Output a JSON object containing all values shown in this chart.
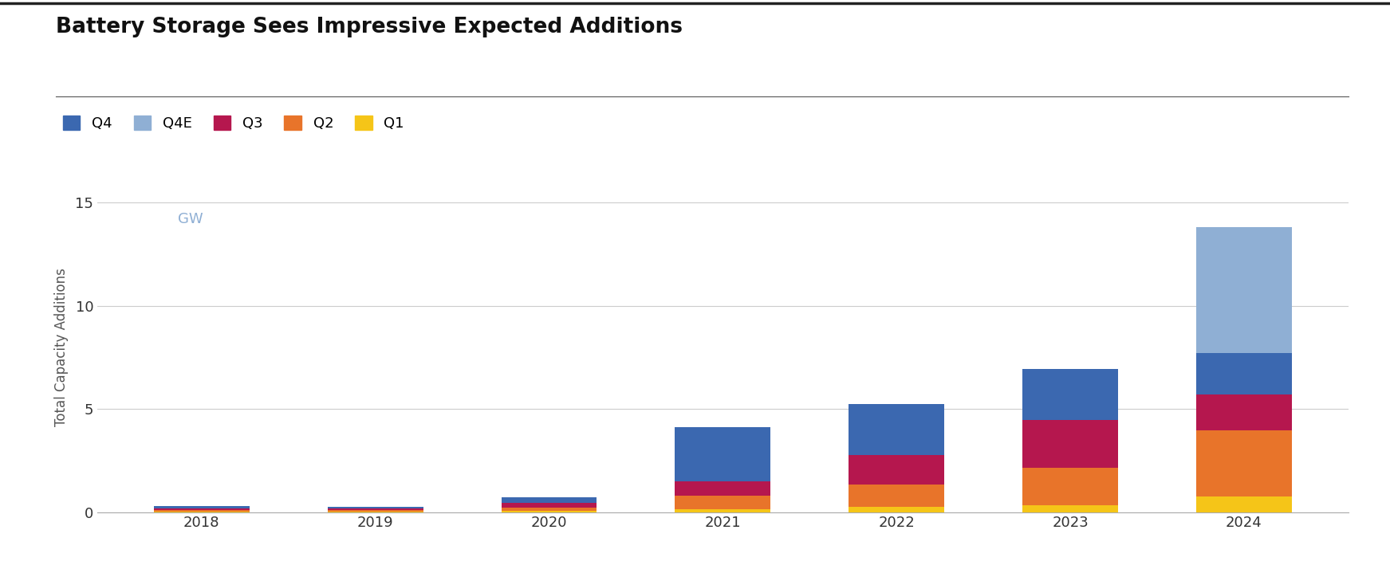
{
  "title": "Battery Storage Sees Impressive Expected Additions",
  "ylabel": "Total Capacity Additions",
  "ylabel_unit": "GW",
  "years": [
    2018,
    2019,
    2020,
    2021,
    2022,
    2023,
    2024
  ],
  "series": {
    "Q1": [
      0.03,
      0.03,
      0.05,
      0.15,
      0.25,
      0.35,
      0.75
    ],
    "Q2": [
      0.07,
      0.07,
      0.15,
      0.65,
      1.1,
      1.8,
      3.2
    ],
    "Q3": [
      0.08,
      0.07,
      0.25,
      0.7,
      1.4,
      2.3,
      1.75
    ],
    "Q4": [
      0.12,
      0.08,
      0.25,
      2.6,
      2.5,
      2.5,
      2.0
    ],
    "Q4E": [
      0.0,
      0.0,
      0.0,
      0.0,
      0.0,
      0.0,
      6.1
    ]
  },
  "colors": {
    "Q1": "#F5C518",
    "Q2": "#E8742A",
    "Q3": "#B5174E",
    "Q4": "#3B68B0",
    "Q4E": "#8FAFD4"
  },
  "legend_order": [
    "Q4",
    "Q4E",
    "Q3",
    "Q2",
    "Q1"
  ],
  "ylim": [
    0,
    16
  ],
  "yticks": [
    0,
    5,
    10,
    15
  ],
  "background_color": "#ffffff",
  "grid_color": "#cccccc",
  "bar_width": 0.55,
  "title_fontsize": 19,
  "axis_label_fontsize": 12,
  "tick_fontsize": 13,
  "legend_fontsize": 13,
  "top_line_color": "#222222",
  "spine_bottom_color": "#aaaaaa",
  "gw_color": "#8FAFD4"
}
